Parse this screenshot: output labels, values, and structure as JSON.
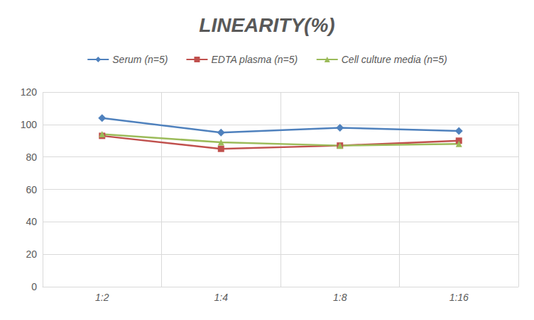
{
  "chart_data": {
    "type": "line",
    "title": "LINEARITY(%)",
    "categories": [
      "1:2",
      "1:4",
      "1:8",
      "1:16"
    ],
    "series": [
      {
        "name": "Serum (n=5)",
        "color": "#4f81bd",
        "marker": "diamond",
        "values": [
          104,
          95,
          98,
          96
        ]
      },
      {
        "name": "EDTA plasma (n=5)",
        "color": "#c0504d",
        "marker": "square",
        "values": [
          93,
          85,
          87,
          90
        ]
      },
      {
        "name": "Cell culture media (n=5)",
        "color": "#9bbb59",
        "marker": "triangle",
        "values": [
          94,
          89,
          87,
          88
        ]
      }
    ],
    "ylim": [
      0,
      120
    ],
    "yticks": [
      0,
      20,
      40,
      60,
      80,
      100,
      120
    ],
    "grid": true,
    "legend": "top"
  }
}
